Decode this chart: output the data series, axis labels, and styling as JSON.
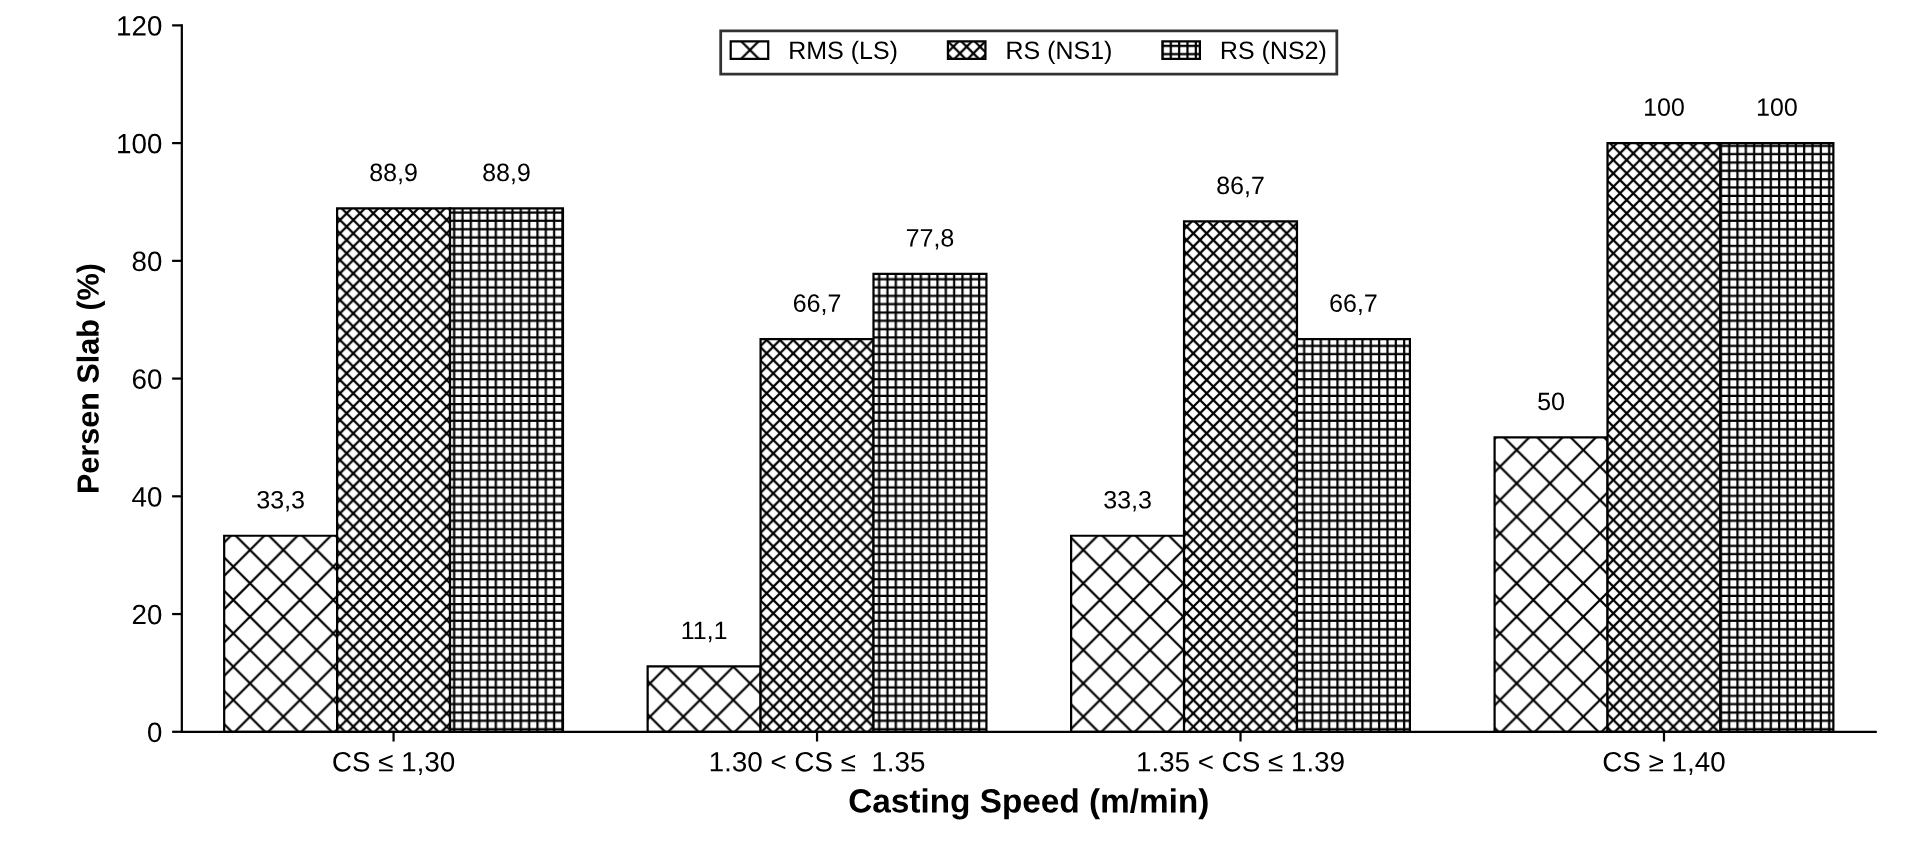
{
  "chart_data": {
    "type": "bar",
    "xlabel": "Casting Speed (m/min)",
    "ylabel": "Persen Slab (%)",
    "categories": [
      "CS ≤ 1,30",
      "1.30 < CS ≤  1.35",
      "1.35 < CS ≤ 1.39",
      "CS ≥ 1,40"
    ],
    "series": [
      {
        "name": "RMS (LS)",
        "color": "#000000",
        "values": [
          33.3,
          11.1,
          33.3,
          50
        ],
        "value_labels": [
          "33,3",
          "11,1",
          "33,3",
          "50"
        ]
      },
      {
        "name": "RS (NS1)",
        "color": "#000000",
        "values": [
          88.9,
          66.7,
          86.7,
          100
        ],
        "value_labels": [
          "88,9",
          "66,7",
          "86,7",
          "100"
        ]
      },
      {
        "name": "RS (NS2)",
        "color": "#000000",
        "values": [
          88.9,
          77.8,
          66.7,
          100
        ],
        "value_labels": [
          "88,9",
          "77,8",
          "66,7",
          "100"
        ]
      }
    ],
    "ylim": [
      0,
      120
    ],
    "yticks": [
      0,
      20,
      40,
      60,
      80,
      100,
      120
    ],
    "grid": false,
    "legend": "top"
  }
}
